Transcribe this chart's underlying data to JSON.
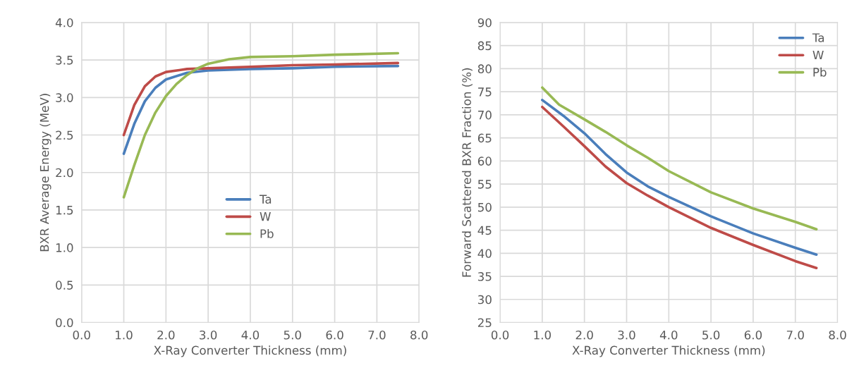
{
  "chart_data": [
    {
      "type": "line",
      "xlabel": "X-Ray Converter Thickness (mm)",
      "ylabel": "BXR Average Energy (MeV)",
      "legend": "center",
      "grid": true,
      "xlim": [
        0,
        8
      ],
      "xticks": [
        {
          "value": 0,
          "label": "0.0"
        },
        {
          "value": 1,
          "label": "1.0"
        },
        {
          "value": 2,
          "label": "2.0"
        },
        {
          "value": 3,
          "label": "3.0"
        },
        {
          "value": 4,
          "label": "4.0"
        },
        {
          "value": 5,
          "label": "5.0"
        },
        {
          "value": 6,
          "label": "6.0"
        },
        {
          "value": 7,
          "label": "7.0"
        },
        {
          "value": 8,
          "label": "8.0"
        }
      ],
      "ylim": [
        0,
        4
      ],
      "yticks": [
        {
          "value": 0,
          "label": "0.0"
        },
        {
          "value": 0.5,
          "label": "0.5"
        },
        {
          "value": 1,
          "label": "1.0"
        },
        {
          "value": 1.5,
          "label": "1.5"
        },
        {
          "value": 2,
          "label": "2.0"
        },
        {
          "value": 2.5,
          "label": "2.5"
        },
        {
          "value": 3,
          "label": "3.0"
        },
        {
          "value": 3.5,
          "label": "3.5"
        },
        {
          "value": 4,
          "label": "4.0"
        }
      ],
      "series": [
        {
          "name": "Ta",
          "color": "#4a7ebb",
          "x": [
            1.0,
            1.25,
            1.5,
            1.75,
            2.0,
            2.5,
            3.0,
            4.0,
            5.0,
            6.0,
            7.5
          ],
          "values": [
            2.25,
            2.65,
            2.95,
            3.13,
            3.24,
            3.33,
            3.36,
            3.38,
            3.39,
            3.41,
            3.42
          ]
        },
        {
          "name": "W",
          "color": "#be4b48",
          "x": [
            1.0,
            1.25,
            1.5,
            1.75,
            2.0,
            2.5,
            3.0,
            4.0,
            5.0,
            6.0,
            7.5
          ],
          "values": [
            2.5,
            2.9,
            3.15,
            3.28,
            3.34,
            3.38,
            3.39,
            3.41,
            3.43,
            3.44,
            3.46
          ]
        },
        {
          "name": "Pb",
          "color": "#98b954",
          "x": [
            1.0,
            1.25,
            1.5,
            1.75,
            2.0,
            2.25,
            2.5,
            2.75,
            3.0,
            3.5,
            4.0,
            5.0,
            6.0,
            7.5
          ],
          "values": [
            1.67,
            2.1,
            2.5,
            2.8,
            3.02,
            3.18,
            3.3,
            3.39,
            3.45,
            3.51,
            3.54,
            3.55,
            3.57,
            3.59
          ]
        }
      ]
    },
    {
      "type": "line",
      "xlabel": "X-Ray Converter Thickness (mm)",
      "ylabel": "Forward Scattered BXR Fraction (%)",
      "legend": "top right",
      "grid": true,
      "xlim": [
        0,
        8
      ],
      "xticks": [
        {
          "value": 0,
          "label": "0.0"
        },
        {
          "value": 1,
          "label": "1.0"
        },
        {
          "value": 2,
          "label": "2.0"
        },
        {
          "value": 3,
          "label": "3.0"
        },
        {
          "value": 4,
          "label": "4.0"
        },
        {
          "value": 5,
          "label": "5.0"
        },
        {
          "value": 6,
          "label": "6.0"
        },
        {
          "value": 7,
          "label": "7.0"
        },
        {
          "value": 8,
          "label": "8.0"
        }
      ],
      "ylim": [
        25,
        90
      ],
      "yticks": [
        25,
        30,
        35,
        40,
        45,
        50,
        55,
        60,
        65,
        70,
        75,
        80,
        85,
        90
      ],
      "series": [
        {
          "name": "Ta",
          "color": "#4a7ebb",
          "x": [
            1.0,
            1.5,
            2.0,
            2.5,
            3.0,
            3.5,
            4.0,
            5.0,
            6.0,
            7.0,
            7.5
          ],
          "values": [
            73.2,
            69.8,
            66,
            61.5,
            57.5,
            54.5,
            52.2,
            48,
            44.3,
            41.2,
            39.7
          ]
        },
        {
          "name": "W",
          "color": "#be4b48",
          "x": [
            1.0,
            1.5,
            2.0,
            2.5,
            3.0,
            3.5,
            4.0,
            5.0,
            6.0,
            7.0,
            7.5
          ],
          "values": [
            71.7,
            67.5,
            63.2,
            58.8,
            55.2,
            52.5,
            50,
            45.5,
            41.8,
            38.3,
            36.8
          ]
        },
        {
          "name": "Pb",
          "color": "#98b954",
          "x": [
            1.0,
            1.4,
            2.0,
            2.5,
            3.0,
            3.5,
            4.0,
            5.0,
            6.0,
            7.0,
            7.5
          ],
          "values": [
            75.9,
            72.2,
            69,
            66.3,
            63.4,
            60.7,
            57.8,
            53.2,
            49.7,
            46.8,
            45.2
          ]
        }
      ]
    }
  ]
}
